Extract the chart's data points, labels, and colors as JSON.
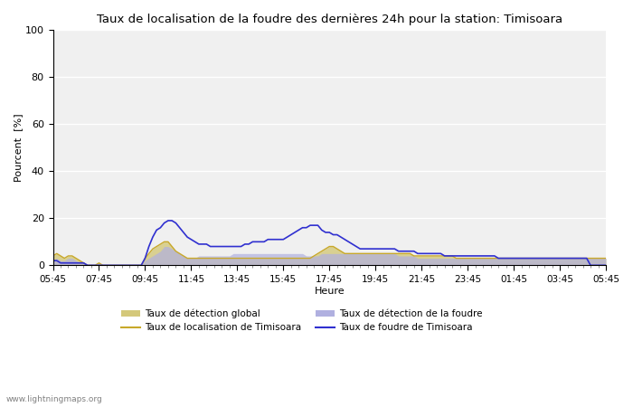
{
  "title": "Taux de localisation de la foudre des dernières 24h pour la station: Timisoara",
  "xlabel": "Heure",
  "ylabel": "Pourcent  [%]",
  "ylim": [
    0,
    100
  ],
  "yticks": [
    0,
    20,
    40,
    60,
    80,
    100
  ],
  "background_color": "#ffffff",
  "plot_bg_color": "#f5f5f5",
  "watermark": "www.lightningmaps.org",
  "x_labels": [
    "05:45",
    "07:45",
    "09:45",
    "11:45",
    "13:45",
    "15:45",
    "17:45",
    "19:45",
    "21:45",
    "23:45",
    "01:45",
    "03:45",
    "05:45"
  ],
  "color_global_fill": "#d4c87a",
  "color_global_line": "#c8a82a",
  "color_foudre_fill": "#b0b0e0",
  "color_foudre_line": "#3030d0",
  "legend_entries": [
    {
      "label": "Taux de détection global",
      "type": "fill",
      "color": "#d4c87a"
    },
    {
      "label": "Taux de localisation de Timisoara",
      "type": "line",
      "color": "#c8a82a"
    },
    {
      "label": "Taux de détection de la foudre",
      "type": "fill",
      "color": "#b0b0e0"
    },
    {
      "label": "Taux de foudre de Timisoara",
      "type": "line",
      "color": "#3030d0"
    }
  ],
  "n_points": 145,
  "global_detect": [
    4,
    5,
    4,
    3,
    4,
    4,
    3,
    2,
    1,
    0,
    0,
    0,
    1,
    0,
    0,
    0,
    0,
    0,
    0,
    0,
    0,
    0,
    0,
    0,
    3,
    5,
    7,
    8,
    9,
    10,
    10,
    8,
    6,
    5,
    4,
    3,
    3,
    3,
    3,
    3,
    3,
    3,
    3,
    3,
    3,
    3,
    3,
    3,
    3,
    3,
    3,
    3,
    3,
    3,
    3,
    3,
    3,
    3,
    3,
    3,
    3,
    3,
    3,
    3,
    3,
    3,
    3,
    3,
    4,
    5,
    6,
    7,
    8,
    8,
    7,
    6,
    5,
    5,
    5,
    5,
    5,
    5,
    5,
    5,
    5,
    5,
    5,
    5,
    5,
    5,
    5,
    5,
    5,
    5,
    4,
    4,
    4,
    4,
    4,
    4,
    4,
    4,
    4,
    4,
    4,
    3,
    3,
    3,
    3,
    3,
    3,
    3,
    3,
    3,
    3,
    3,
    3,
    3,
    3,
    3,
    3,
    3,
    3,
    3,
    3,
    3,
    3,
    3,
    3,
    3,
    3,
    3,
    3,
    3,
    3,
    3,
    3,
    3,
    3,
    3,
    3,
    3,
    3,
    3,
    3
  ],
  "foudre_detect": [
    2,
    3,
    2,
    2,
    3,
    3,
    2,
    1,
    1,
    0,
    0,
    0,
    1,
    0,
    0,
    0,
    0,
    0,
    0,
    0,
    0,
    0,
    0,
    0,
    2,
    3,
    4,
    5,
    6,
    8,
    8,
    7,
    6,
    5,
    4,
    3,
    3,
    3,
    4,
    4,
    4,
    4,
    4,
    4,
    4,
    4,
    4,
    5,
    5,
    5,
    5,
    5,
    5,
    5,
    5,
    5,
    5,
    5,
    5,
    5,
    5,
    5,
    5,
    5,
    5,
    5,
    4,
    4,
    4,
    4,
    5,
    5,
    5,
    5,
    5,
    5,
    5,
    5,
    5,
    5,
    5,
    5,
    5,
    5,
    5,
    5,
    5,
    5,
    5,
    5,
    4,
    4,
    4,
    4,
    4,
    3,
    3,
    3,
    3,
    3,
    3,
    3,
    3,
    3,
    3,
    3,
    3,
    3,
    3,
    3,
    3,
    3,
    3,
    3,
    3,
    3,
    3,
    3,
    3,
    3,
    3,
    3,
    3,
    3,
    3,
    3,
    3,
    3,
    3,
    3,
    3,
    3,
    3,
    3,
    3,
    3,
    3,
    3,
    3,
    3,
    3,
    3,
    3,
    3,
    3
  ],
  "localisation_timisoara": [
    4,
    5,
    4,
    3,
    4,
    4,
    3,
    2,
    1,
    0,
    0,
    0,
    1,
    0,
    0,
    0,
    0,
    0,
    0,
    0,
    0,
    0,
    0,
    0,
    3,
    5,
    7,
    8,
    9,
    10,
    10,
    8,
    6,
    5,
    4,
    3,
    3,
    3,
    3,
    3,
    3,
    3,
    3,
    3,
    3,
    3,
    3,
    3,
    3,
    3,
    3,
    3,
    3,
    3,
    3,
    3,
    3,
    3,
    3,
    3,
    3,
    3,
    3,
    3,
    3,
    3,
    3,
    3,
    4,
    5,
    6,
    7,
    8,
    8,
    7,
    6,
    5,
    5,
    5,
    5,
    5,
    5,
    5,
    5,
    5,
    5,
    5,
    5,
    5,
    5,
    5,
    5,
    5,
    5,
    4,
    4,
    4,
    4,
    4,
    4,
    4,
    4,
    4,
    4,
    4,
    3,
    3,
    3,
    3,
    3,
    3,
    3,
    3,
    3,
    3,
    3,
    3,
    3,
    3,
    3,
    3,
    3,
    3,
    3,
    3,
    3,
    3,
    3,
    3,
    3,
    3,
    3,
    3,
    3,
    3,
    3,
    3,
    3,
    3,
    3,
    3,
    3,
    3,
    3,
    3
  ],
  "foudre_timisoara": [
    2,
    2,
    1,
    1,
    1,
    1,
    1,
    1,
    1,
    0,
    0,
    0,
    0,
    0,
    0,
    0,
    0,
    0,
    0,
    0,
    0,
    0,
    0,
    0,
    3,
    8,
    12,
    15,
    16,
    18,
    19,
    19,
    18,
    16,
    14,
    12,
    11,
    10,
    9,
    9,
    9,
    8,
    8,
    8,
    8,
    8,
    8,
    8,
    8,
    8,
    9,
    9,
    10,
    10,
    10,
    10,
    11,
    11,
    11,
    11,
    11,
    12,
    13,
    14,
    15,
    16,
    16,
    17,
    17,
    17,
    15,
    14,
    14,
    13,
    13,
    12,
    11,
    10,
    9,
    8,
    7,
    7,
    7,
    7,
    7,
    7,
    7,
    7,
    7,
    7,
    6,
    6,
    6,
    6,
    6,
    5,
    5,
    5,
    5,
    5,
    5,
    5,
    4,
    4,
    4,
    4,
    4,
    4,
    4,
    4,
    4,
    4,
    4,
    4,
    4,
    4,
    3,
    3,
    3,
    3,
    3,
    3,
    3,
    3,
    3,
    3,
    3,
    3,
    3,
    3,
    3,
    3,
    3,
    3,
    3,
    3,
    3,
    3,
    3,
    3,
    0,
    0,
    0,
    0,
    0
  ]
}
